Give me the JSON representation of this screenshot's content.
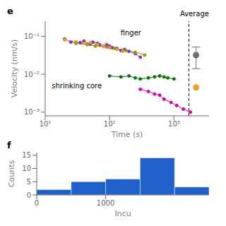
{
  "chart_data": [
    {
      "type": "line",
      "title": "e",
      "x_label": "Time (s)",
      "y_label": "Velocity (nm/s)",
      "log": true,
      "xlim": [
        10,
        3500
      ],
      "ylim": [
        0.0008,
        0.25
      ],
      "xticks": [
        {
          "value": 10,
          "label": "10¹"
        },
        {
          "value": 100,
          "label": "10²"
        },
        {
          "value": 1000,
          "label": "10³"
        }
      ],
      "yticks": [
        {
          "value": 0.001,
          "label": "10⁻³"
        },
        {
          "value": 0.01,
          "label": "10⁻²"
        },
        {
          "value": 0.1,
          "label": "10⁻¹"
        }
      ],
      "series": [
        {
          "color": "#8B2FC9",
          "marker": "o",
          "line_style": "solid",
          "x": [
            20,
            25,
            35,
            40,
            50,
            55,
            65,
            70,
            80,
            90,
            100,
            110,
            130,
            150,
            170,
            200,
            250,
            300
          ],
          "values": [
            0.085,
            0.07,
            0.068,
            0.075,
            0.062,
            0.07,
            0.065,
            0.06,
            0.055,
            0.06,
            0.055,
            0.05,
            0.048,
            0.042,
            0.045,
            0.04,
            0.035,
            0.028
          ]
        },
        {
          "color": "#E8A020",
          "marker": "o",
          "line_style": "solid",
          "x": [
            20,
            30,
            40,
            50,
            65,
            80,
            100,
            130,
            160
          ],
          "values": [
            0.08,
            0.072,
            0.065,
            0.068,
            0.06,
            0.055,
            0.05,
            0.045,
            0.04
          ]
        },
        {
          "color": "#999900",
          "marker": "o",
          "line_style": "solid",
          "x": [
            30,
            45,
            60,
            90,
            120,
            180,
            250,
            350
          ],
          "values": [
            0.065,
            0.06,
            0.055,
            0.052,
            0.048,
            0.042,
            0.038,
            0.032
          ]
        },
        {
          "color": "#007700",
          "marker": "o",
          "line_style": "solid",
          "x": [
            100,
            150,
            200,
            250,
            300,
            400,
            500,
            600,
            700,
            800,
            1000
          ],
          "values": [
            0.009,
            0.0085,
            0.009,
            0.008,
            0.0075,
            0.008,
            0.0085,
            0.009,
            0.0085,
            0.008,
            0.0075
          ]
        },
        {
          "color": "#DD00AA",
          "marker": "o",
          "line_style": "solid",
          "x": [
            300,
            400,
            500,
            600,
            700,
            900,
            1100,
            1400,
            1800
          ],
          "values": [
            0.004,
            0.0035,
            0.003,
            0.0028,
            0.0022,
            0.0018,
            0.0015,
            0.0012,
            0.001
          ]
        },
        {
          "type": "scatter",
          "color": "#707070",
          "marker": "o",
          "x": [
            2200
          ],
          "values": [
            0.032
          ],
          "error_lo": [
            0.018
          ],
          "error_hi": [
            0.02
          ]
        },
        {
          "type": "scatter",
          "color": "#F0A020",
          "marker": "o",
          "x": [
            2200
          ],
          "values": [
            0.0045
          ]
        }
      ],
      "reference_lines": [
        {
          "x": 1700,
          "line_style": "dashed",
          "color": "#000000"
        }
      ],
      "annotations": [
        "finger",
        "shrinking core",
        "Average"
      ]
    },
    {
      "type": "bar",
      "title": "f",
      "x_label": "Incu",
      "y_label": "Counts",
      "bins": [
        0,
        500,
        1000,
        1500,
        2000,
        2500
      ],
      "values": [
        2,
        5,
        6,
        14,
        3
      ],
      "color": "#2060CC",
      "xlim": [
        0,
        2500
      ],
      "xticks": [
        0,
        1000
      ],
      "ylim": [
        0,
        16
      ],
      "yticks": [
        0,
        5,
        10,
        15
      ]
    }
  ]
}
